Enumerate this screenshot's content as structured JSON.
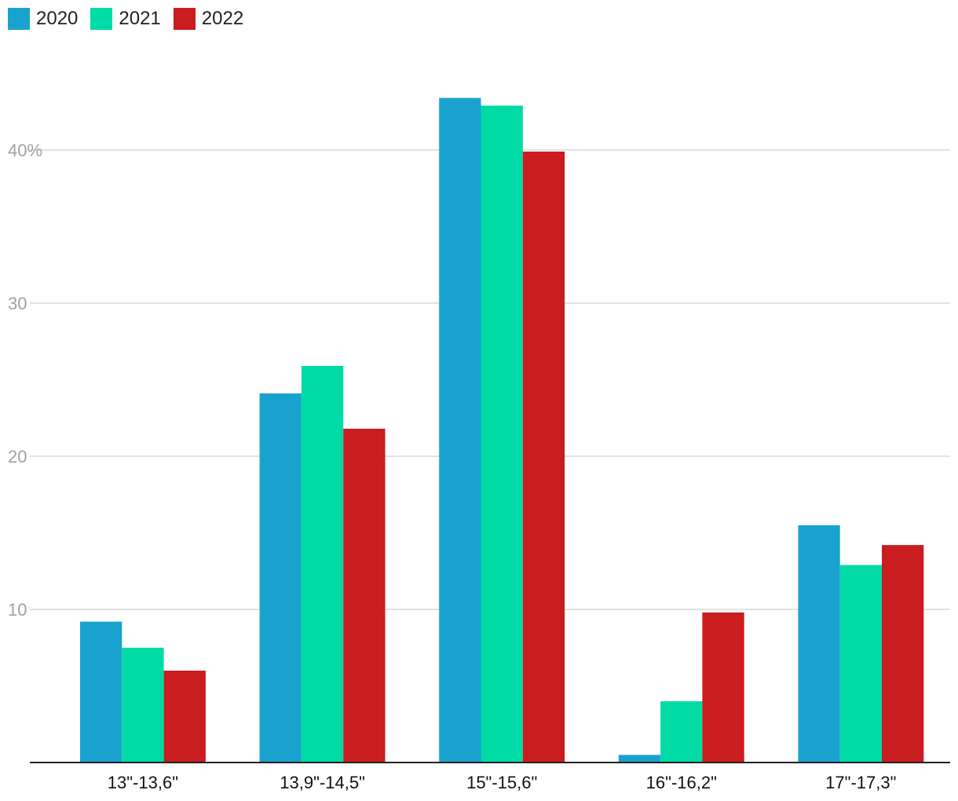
{
  "chart_data": {
    "type": "bar",
    "categories": [
      "13\"-13,6\"",
      "13,9\"-14,5\"",
      "15\"-15,6\"",
      "16\"-16,2\"",
      "17\"-17,3\""
    ],
    "series": [
      {
        "name": "2020",
        "color": "#1aa2cf",
        "values": [
          9.2,
          24.1,
          43.4,
          0.5,
          15.5
        ]
      },
      {
        "name": "2021",
        "color": "#00dba6",
        "values": [
          7.5,
          25.9,
          42.9,
          4.0,
          12.9
        ]
      },
      {
        "name": "2022",
        "color": "#c91d1f",
        "values": [
          6.0,
          21.8,
          39.9,
          9.8,
          14.2
        ]
      }
    ],
    "ylim": [
      0,
      47
    ],
    "yticks": [
      10,
      20,
      30,
      40
    ],
    "ytick_labels": [
      "10",
      "20",
      "30",
      "40%"
    ],
    "grid": true,
    "legend": "top-left"
  }
}
